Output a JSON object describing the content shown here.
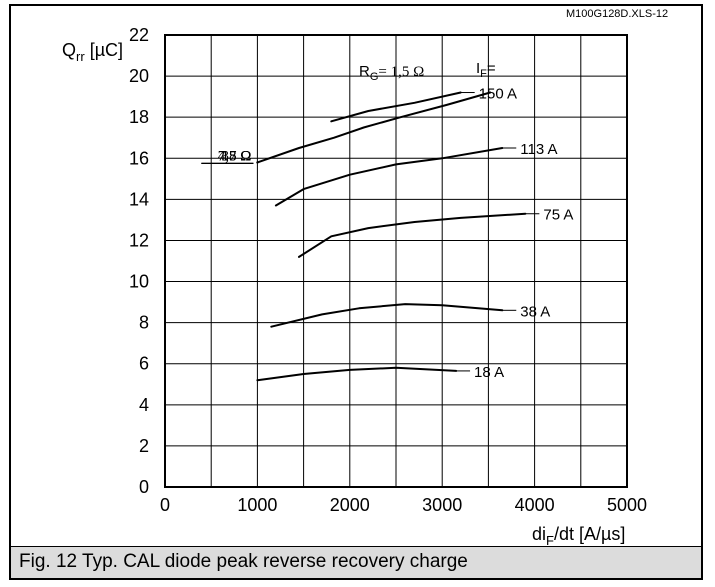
{
  "file_id": "M100G128D.XLS-12",
  "caption": "Fig. 12 Typ. CAL diode peak reverse recovery charge",
  "chart_data": {
    "type": "line",
    "y_axis": {
      "label_main": "Q",
      "label_sub": "rr",
      "label_unit": " [µC]",
      "range": [
        0,
        22
      ],
      "ticks": [
        0,
        2,
        4,
        6,
        8,
        10,
        12,
        14,
        16,
        18,
        20,
        22
      ]
    },
    "x_axis": {
      "label_main": "di",
      "label_sub": "F",
      "label_unit": "/dt [A/µs]",
      "range": [
        0,
        5000
      ],
      "ticks": [
        0,
        1000,
        2000,
        3000,
        4000,
        5000
      ]
    },
    "grid": true,
    "if_header_main": "I",
    "if_header_sub": "F",
    "if_header_suffix": "=",
    "rg_header_main": "R",
    "rg_header_sub": "G",
    "rg_header_suffix": "= 1,5 Ω",
    "series_if": [
      {
        "name": "150 A",
        "points": [
          [
            1800,
            17.8
          ],
          [
            2200,
            18.3
          ],
          [
            2700,
            18.7
          ],
          [
            3200,
            19.2
          ]
        ]
      },
      {
        "name": "113 A",
        "points": [
          [
            1200,
            13.7
          ],
          [
            1500,
            14.5
          ],
          [
            2000,
            15.2
          ],
          [
            2500,
            15.7
          ],
          [
            3000,
            16.0
          ],
          [
            3650,
            16.5
          ]
        ]
      },
      {
        "name": "75 A",
        "points": [
          [
            1450,
            11.2
          ],
          [
            1800,
            12.2
          ],
          [
            2200,
            12.6
          ],
          [
            2700,
            12.9
          ],
          [
            3200,
            13.1
          ],
          [
            3900,
            13.3
          ]
        ]
      },
      {
        "name": "38 A",
        "points": [
          [
            1150,
            7.8
          ],
          [
            1700,
            8.4
          ],
          [
            2100,
            8.7
          ],
          [
            2600,
            8.9
          ],
          [
            3000,
            8.85
          ],
          [
            3650,
            8.6
          ]
        ]
      },
      {
        "name": "18 A",
        "points": [
          [
            1000,
            5.2
          ],
          [
            1500,
            5.5
          ],
          [
            2000,
            5.7
          ],
          [
            2500,
            5.8
          ],
          [
            3150,
            5.65
          ]
        ]
      }
    ],
    "series_rg": [
      {
        "name": "38 Ω",
        "points": [
          [
            1000,
            15.8
          ],
          [
            1000,
            15.8
          ],
          [
            1450,
            16.5
          ],
          [
            1830,
            17.0
          ],
          [
            2150,
            17.5
          ],
          [
            2550,
            18.0
          ],
          [
            3050,
            18.6
          ],
          [
            3520,
            19.2
          ]
        ]
      },
      {
        "name": "15 Ω",
        "points": [
          [
            1000,
            15.8
          ],
          [
            1000,
            15.8
          ],
          [
            1000,
            15.8
          ],
          [
            1000,
            15.8
          ],
          [
            1000,
            15.8
          ],
          [
            1000,
            15.8
          ],
          [
            1000,
            15.8
          ],
          [
            1000,
            15.8
          ]
        ]
      },
      {
        "name": "7,5 Ω",
        "points": [
          [
            1000,
            15.8
          ],
          [
            1000,
            15.8
          ],
          [
            1000,
            15.8
          ],
          [
            1000,
            15.8
          ],
          [
            1000,
            15.8
          ],
          [
            1000,
            15.8
          ],
          [
            1000,
            15.8
          ],
          [
            1000,
            15.8
          ]
        ]
      },
      {
        "name": "4,7 Ω",
        "points": [
          [
            1000,
            15.8
          ],
          [
            1000,
            15.8
          ],
          [
            1000,
            15.8
          ],
          [
            1000,
            15.8
          ],
          [
            1000,
            15.8
          ],
          [
            1000,
            15.8
          ],
          [
            1000,
            15.8
          ],
          [
            1000,
            15.8
          ]
        ]
      },
      {
        "name": "1,5 Ω",
        "points": [
          [
            1000,
            15.8
          ],
          [
            1000,
            15.8
          ],
          [
            1000,
            15.8
          ],
          [
            1000,
            15.8
          ],
          [
            1000,
            15.8
          ],
          [
            1000,
            15.8
          ],
          [
            1000,
            15.8
          ],
          [
            1000,
            15.8
          ]
        ]
      }
    ]
  }
}
